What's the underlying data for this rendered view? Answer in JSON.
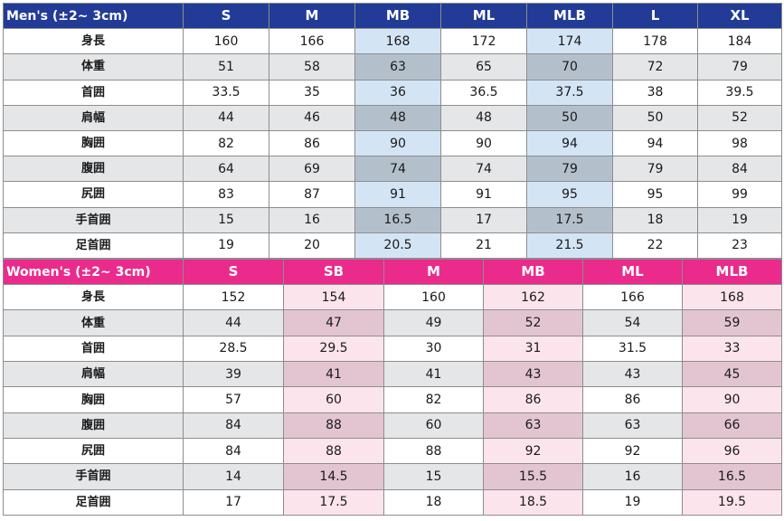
{
  "men": {
    "title": "Men's (±2~ 3cm)",
    "sizes": [
      "S",
      "M",
      "MB",
      "ML",
      "MLB",
      "L",
      "XL"
    ],
    "highlight_columns": [
      2,
      4
    ],
    "highlight_color": "#d3e4f5",
    "header_color": "#223b96",
    "rows": [
      {
        "label": "身長",
        "values": [
          "160",
          "166",
          "168",
          "172",
          "174",
          "178",
          "184"
        ]
      },
      {
        "label": "体重",
        "values": [
          "51",
          "58",
          "63",
          "65",
          "70",
          "72",
          "79"
        ]
      },
      {
        "label": "首囲",
        "values": [
          "33.5",
          "35",
          "36",
          "36.5",
          "37.5",
          "38",
          "39.5"
        ]
      },
      {
        "label": "肩幅",
        "values": [
          "44",
          "46",
          "48",
          "48",
          "50",
          "50",
          "52"
        ]
      },
      {
        "label": "胸囲",
        "values": [
          "82",
          "86",
          "90",
          "90",
          "94",
          "94",
          "98"
        ]
      },
      {
        "label": "腹囲",
        "values": [
          "64",
          "69",
          "74",
          "74",
          "79",
          "79",
          "84"
        ]
      },
      {
        "label": "尻囲",
        "values": [
          "83",
          "87",
          "91",
          "91",
          "95",
          "95",
          "99"
        ]
      },
      {
        "label": "手首囲",
        "values": [
          "15",
          "16",
          "16.5",
          "17",
          "17.5",
          "18",
          "19"
        ]
      },
      {
        "label": "足首囲",
        "values": [
          "19",
          "20",
          "20.5",
          "21",
          "21.5",
          "22",
          "23"
        ]
      }
    ]
  },
  "women": {
    "title": "Women's (±2~ 3cm)",
    "sizes": [
      "S",
      "SB",
      "M",
      "MB",
      "ML",
      "MLB"
    ],
    "highlight_columns": [
      1,
      3,
      5
    ],
    "highlight_color": "#fce4ec",
    "header_color": "#ea2b8c",
    "rows": [
      {
        "label": "身長",
        "values": [
          "152",
          "154",
          "160",
          "162",
          "166",
          "168"
        ]
      },
      {
        "label": "体重",
        "values": [
          "44",
          "47",
          "49",
          "52",
          "54",
          "59"
        ]
      },
      {
        "label": "首囲",
        "values": [
          "28.5",
          "29.5",
          "30",
          "31",
          "31.5",
          "33"
        ]
      },
      {
        "label": "肩幅",
        "values": [
          "39",
          "41",
          "41",
          "43",
          "43",
          "45"
        ]
      },
      {
        "label": "胸囲",
        "values": [
          "57",
          "60",
          "82",
          "86",
          "86",
          "90"
        ]
      },
      {
        "label": "腹囲",
        "values": [
          "84",
          "88",
          "60",
          "63",
          "63",
          "66"
        ]
      },
      {
        "label": "尻囲",
        "values": [
          "84",
          "88",
          "88",
          "92",
          "92",
          "96"
        ]
      },
      {
        "label": "手首囲",
        "values": [
          "14",
          "14.5",
          "15",
          "15.5",
          "16",
          "16.5"
        ]
      },
      {
        "label": "足首囲",
        "values": [
          "17",
          "17.5",
          "18",
          "18.5",
          "19",
          "19.5"
        ]
      }
    ]
  }
}
